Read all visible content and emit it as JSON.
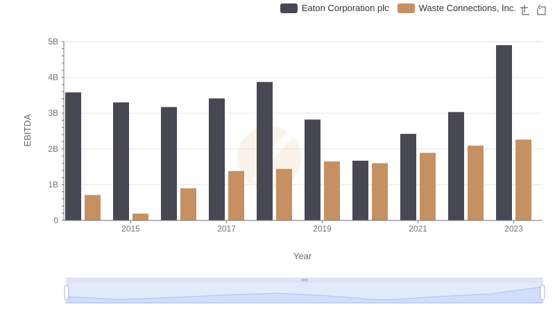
{
  "chart_data": {
    "type": "bar",
    "title": "",
    "xlabel": "Year",
    "ylabel": "EBITDA",
    "categories": [
      "2014",
      "2015",
      "2016",
      "2017",
      "2018",
      "2019",
      "2020",
      "2021",
      "2022",
      "2023"
    ],
    "x_tick_labels": [
      "2015",
      "2017",
      "2019",
      "2021",
      "2023"
    ],
    "y_tick_labels": [
      "0",
      "1B",
      "2B",
      "3B",
      "4B",
      "5B"
    ],
    "ylim": [
      0,
      5000000000
    ],
    "grid": true,
    "legend_position": "top-right",
    "series": [
      {
        "name": "Eaton Corporation plc",
        "color": "#484754",
        "values": [
          3580000000,
          3300000000,
          3170000000,
          3410000000,
          3870000000,
          2820000000,
          1670000000,
          2420000000,
          3030000000,
          4900000000
        ]
      },
      {
        "name": "Waste Connections, Inc.",
        "color": "#c69062",
        "values": [
          710000000,
          190000000,
          900000000,
          1380000000,
          1440000000,
          1650000000,
          1600000000,
          1890000000,
          2090000000,
          2260000000
        ]
      }
    ]
  },
  "toolbox": {
    "restore_icon": "restore-icon",
    "zoom_icon": "zoom-icon"
  }
}
